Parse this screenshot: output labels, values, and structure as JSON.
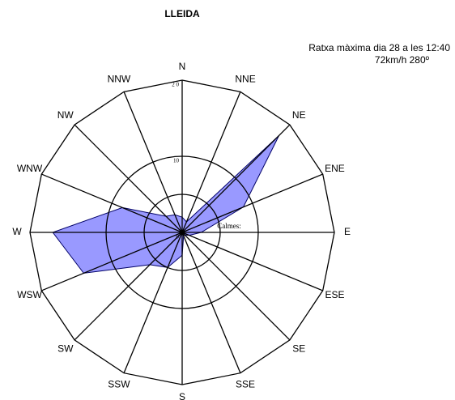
{
  "chart_data": {
    "type": "windrose",
    "title": "LLEIDA",
    "annotation": [
      "Ratxa màxima dia 28 a les 12:40",
      "72km/h 280º"
    ],
    "calm_label": "Calmes:",
    "categories": [
      "N",
      "NNE",
      "NE",
      "ENE",
      "E",
      "ESE",
      "SE",
      "SSE",
      "S",
      "SSW",
      "SW",
      "WSW",
      "W",
      "WNW",
      "NW",
      "NNW"
    ],
    "values": [
      2,
      1.5,
      18,
      8.7,
      2.5,
      1,
      0.5,
      0.5,
      3,
      5,
      6,
      14,
      17,
      8.5,
      3,
      2.5
    ],
    "color": "#9999ff",
    "ylim": [
      0,
      20
    ],
    "yticks": [
      0,
      10,
      {
        "value": 20,
        "label": "2 0"
      }
    ],
    "grid_rings": [
      5,
      10
    ]
  }
}
